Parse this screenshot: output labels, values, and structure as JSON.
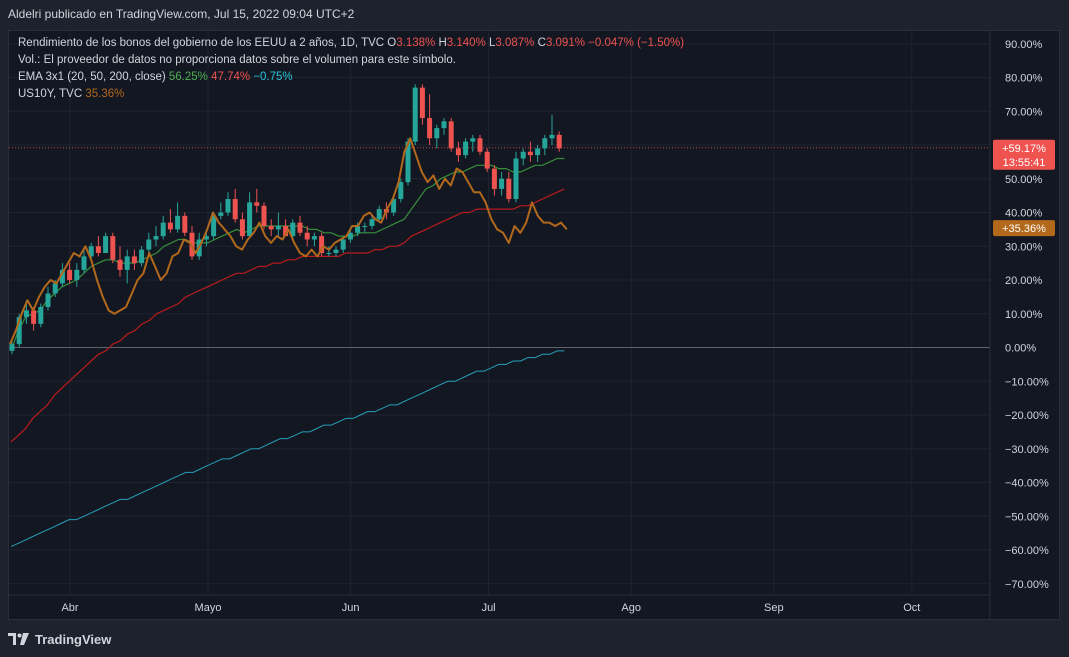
{
  "header": {
    "publisher": "Aldelri publicado en TradingView.com, Jul 15, 2022 09:04 UTC+2"
  },
  "legend": {
    "line1": {
      "symbol": "Rendimiento de los bonos del gobierno de los EEUU a 2 años, 1D, TVC",
      "o_label": "O",
      "o_value": "3.138%",
      "h_label": "H",
      "h_value": "3.140%",
      "l_label": "L",
      "l_value": "3.087%",
      "c_label": "C",
      "c_value": "3.091%",
      "change": "−0.047% (−1.50%)"
    },
    "line2": "Vol.: El proveedor de datos no proporciona datos sobre el volumen para este símbolo.",
    "line3": {
      "label": "EMA 3x1 (20, 50, 200, close)",
      "v1": "56.25%",
      "v2": "47.74%",
      "v3": "−0.75%"
    },
    "line4": {
      "label": "US10Y, TVC",
      "v1": "35.36%"
    }
  },
  "price_tags": {
    "main": {
      "value": "+59.17%",
      "countdown": "13:55:41"
    },
    "us10y": {
      "value": "+35.36%"
    }
  },
  "colors": {
    "up": "#26a69a",
    "down": "#ef5350",
    "ema20": "#388e3c",
    "ema50": "#b71c1c",
    "ema200": "#26a0b8",
    "us10y": "#b2691c",
    "background": "#131722",
    "grid": "#1f2330"
  },
  "chart_data": {
    "type": "line",
    "ylim": [
      -70,
      90
    ],
    "y_ticks": [
      90,
      80,
      70,
      60,
      50,
      40,
      30,
      20,
      10,
      0,
      -10,
      -20,
      -30,
      -40,
      -50,
      -60,
      -70
    ],
    "y_tick_labels": [
      "90.00%",
      "80.00%",
      "70.00%",
      "60.00%",
      "50.00%",
      "40.00%",
      "30.00%",
      "20.00%",
      "10.00%",
      "0.00%",
      "−10.00%",
      "−20.00%",
      "−30.00%",
      "−40.00%",
      "−50.00%",
      "−60.00%",
      "−70.00%"
    ],
    "x_tick_labels": [
      "Abr",
      "Mayo",
      "Jun",
      "Jul",
      "Ago",
      "Sep",
      "Oct"
    ],
    "x_tick_day": [
      23,
      53,
      84,
      114,
      145,
      176,
      206
    ],
    "x_start_day": 8.5,
    "x_px_per_day": 4.6,
    "current_value": 59.17,
    "candles": [
      [
        -1.0,
        2.0,
        -2.0,
        1.0
      ],
      [
        1.0,
        10.0,
        0.0,
        9.0
      ],
      [
        9.0,
        14.0,
        7.0,
        11.0
      ],
      [
        11.0,
        12.0,
        5.0,
        7.0
      ],
      [
        7.0,
        13.0,
        6.0,
        12.0
      ],
      [
        12.0,
        18.0,
        11.0,
        16.0
      ],
      [
        16.0,
        20.0,
        15.0,
        19.0
      ],
      [
        19.0,
        25.0,
        18.0,
        23.0
      ],
      [
        23.0,
        25.0,
        19.0,
        20.0
      ],
      [
        20.0,
        25.0,
        18.0,
        23.0
      ],
      [
        23.0,
        29.0,
        22.0,
        27.0
      ],
      [
        27.0,
        31.0,
        26.0,
        30.0
      ],
      [
        30.0,
        33.0,
        27.0,
        28.0
      ],
      [
        28.0,
        34.0,
        28.0,
        33.0
      ],
      [
        33.0,
        34.0,
        25.0,
        26.0
      ],
      [
        26.0,
        30.0,
        21.0,
        23.0
      ],
      [
        23.0,
        29.0,
        19.0,
        27.0
      ],
      [
        27.0,
        29.0,
        23.0,
        25.0
      ],
      [
        25.0,
        30.0,
        24.0,
        29.0
      ],
      [
        29.0,
        34.0,
        28.0,
        32.0
      ],
      [
        32.0,
        36.0,
        30.0,
        33.0
      ],
      [
        33.0,
        39.0,
        32.0,
        37.0
      ],
      [
        37.0,
        41.0,
        34.0,
        35.0
      ],
      [
        35.0,
        43.0,
        34.0,
        39.0
      ],
      [
        39.0,
        40.0,
        33.0,
        34.0
      ],
      [
        34.0,
        36.0,
        26.0,
        27.0
      ],
      [
        27.0,
        34.0,
        26.0,
        32.0
      ],
      [
        32.0,
        35.0,
        30.0,
        33.0
      ],
      [
        33.0,
        40.0,
        32.0,
        39.0
      ],
      [
        39.0,
        43.0,
        38.0,
        40.0
      ],
      [
        40.0,
        46.0,
        39.0,
        44.0
      ],
      [
        44.0,
        47.0,
        37.0,
        38.0
      ],
      [
        38.0,
        40.0,
        32.0,
        33.0
      ],
      [
        33.0,
        46.0,
        33.0,
        43.0
      ],
      [
        43.0,
        47.0,
        40.0,
        42.0
      ],
      [
        42.0,
        43.0,
        35.0,
        36.0
      ],
      [
        36.0,
        38.0,
        33.0,
        35.0
      ],
      [
        35.0,
        40.0,
        33.0,
        36.0
      ],
      [
        36.0,
        38.0,
        33.0,
        33.0
      ],
      [
        33.0,
        38.0,
        32.0,
        37.0
      ],
      [
        37.0,
        39.0,
        33.0,
        34.0
      ],
      [
        34.0,
        36.0,
        30.0,
        32.0
      ],
      [
        32.0,
        34.0,
        30.0,
        33.0
      ],
      [
        33.0,
        34.0,
        27.0,
        28.0
      ],
      [
        28.0,
        30.0,
        27.0,
        28.0
      ],
      [
        28.0,
        30.0,
        27.0,
        29.0
      ],
      [
        29.0,
        33.0,
        28.0,
        32.0
      ],
      [
        32.0,
        35.0,
        31.0,
        34.0
      ],
      [
        34.0,
        37.0,
        33.0,
        36.0
      ],
      [
        36.0,
        37.0,
        34.0,
        36.0
      ],
      [
        36.0,
        39.0,
        35.0,
        38.0
      ],
      [
        38.0,
        42.0,
        37.0,
        41.0
      ],
      [
        41.0,
        43.0,
        38.0,
        40.0
      ],
      [
        40.0,
        45.0,
        39.0,
        44.0
      ],
      [
        44.0,
        50.0,
        43.0,
        49.0
      ],
      [
        49.0,
        62.0,
        48.0,
        61.0
      ],
      [
        61.0,
        78.0,
        60.0,
        77.0
      ],
      [
        77.0,
        78.0,
        66.0,
        68.0
      ],
      [
        68.0,
        75.0,
        60.0,
        62.0
      ],
      [
        62.0,
        66.0,
        59.0,
        65.0
      ],
      [
        65.0,
        68.0,
        63.0,
        67.0
      ],
      [
        67.0,
        68.0,
        58.0,
        59.0
      ],
      [
        59.0,
        61.0,
        55.0,
        57.0
      ],
      [
        57.0,
        62.0,
        56.0,
        61.0
      ],
      [
        61.0,
        63.0,
        58.0,
        62.0
      ],
      [
        62.0,
        63.0,
        57.0,
        58.0
      ],
      [
        58.0,
        59.0,
        52.0,
        53.0
      ],
      [
        53.0,
        54.0,
        45.0,
        47.0
      ],
      [
        47.0,
        52.0,
        45.0,
        50.0
      ],
      [
        50.0,
        52.0,
        43.0,
        44.0
      ],
      [
        44.0,
        58.0,
        43.0,
        56.0
      ],
      [
        56.0,
        59.0,
        54.0,
        58.0
      ],
      [
        58.0,
        61.0,
        55.0,
        57.0
      ],
      [
        57.0,
        60.0,
        55.0,
        59.0
      ],
      [
        59.0,
        63.0,
        57.0,
        62.0
      ],
      [
        62.0,
        69.0,
        60.0,
        63.0
      ],
      [
        63.0,
        64.0,
        58.0,
        59.0
      ]
    ],
    "series": [
      {
        "values": [
          -1.0,
          5.0,
          9.0,
          10.0,
          11.0,
          14.0,
          16.0,
          18.0,
          19.0,
          20.0,
          22.0,
          24.0,
          25.0,
          26.0,
          26.0,
          25.0,
          25.0,
          25.0,
          26.0,
          27.0,
          28.0,
          30.0,
          31.0,
          32.0,
          32.0,
          31.0,
          31.0,
          31.0,
          32.0,
          33.0,
          34.0,
          35.0,
          34.0,
          35.0,
          36.0,
          36.0,
          36.0,
          36.0,
          36.0,
          36.0,
          36.0,
          35.0,
          35.0,
          34.0,
          34.0,
          33.0,
          33.0,
          33.0,
          34.0,
          34.0,
          34.0,
          35.0,
          36.0,
          37.0,
          38.0,
          41.0,
          44.0,
          47.0,
          48.0,
          50.0,
          51.0,
          52.0,
          52.0,
          53.0,
          54.0,
          54.0,
          54.0,
          53.0,
          53.0,
          52.0,
          52.0,
          53.0,
          54.0,
          54.0,
          55.0,
          56.0,
          56.0
        ]
      },
      {
        "values": [
          -28.0,
          -26.0,
          -24.0,
          -21.0,
          -19.0,
          -17.0,
          -14.0,
          -12.0,
          -10.0,
          -8.0,
          -6.0,
          -4.0,
          -2.0,
          -1.0,
          1.0,
          2.0,
          4.0,
          5.0,
          7.0,
          8.0,
          10.0,
          11.0,
          12.0,
          13.0,
          15.0,
          16.0,
          17.0,
          18.0,
          19.0,
          20.0,
          21.0,
          22.0,
          22.0,
          23.0,
          24.0,
          24.0,
          25.0,
          25.0,
          26.0,
          26.0,
          27.0,
          27.0,
          27.0,
          27.0,
          27.0,
          27.0,
          28.0,
          28.0,
          28.0,
          28.0,
          29.0,
          29.0,
          30.0,
          30.0,
          31.0,
          33.0,
          34.0,
          35.0,
          36.0,
          37.0,
          38.0,
          39.0,
          40.0,
          40.0,
          41.0,
          41.0,
          41.0,
          41.0,
          41.0,
          41.0,
          42.0,
          42.0,
          43.0,
          44.0,
          45.0,
          46.0,
          47.0
        ]
      },
      {
        "values": [
          -59.0,
          -58.0,
          -57.0,
          -56.0,
          -55.0,
          -54.0,
          -53.0,
          -52.0,
          -51.0,
          -51.0,
          -50.0,
          -49.0,
          -48.0,
          -47.0,
          -46.0,
          -45.0,
          -45.0,
          -44.0,
          -43.0,
          -42.0,
          -41.0,
          -40.0,
          -39.0,
          -38.0,
          -37.0,
          -37.0,
          -36.0,
          -35.0,
          -34.0,
          -33.0,
          -33.0,
          -32.0,
          -31.0,
          -30.0,
          -30.0,
          -29.0,
          -28.0,
          -27.0,
          -27.0,
          -26.0,
          -25.0,
          -25.0,
          -24.0,
          -23.0,
          -23.0,
          -22.0,
          -21.0,
          -21.0,
          -20.0,
          -19.0,
          -19.0,
          -18.0,
          -17.0,
          -17.0,
          -16.0,
          -15.0,
          -14.0,
          -13.0,
          -12.0,
          -11.0,
          -10.0,
          -10.0,
          -9.0,
          -8.0,
          -7.0,
          -7.0,
          -6.0,
          -5.0,
          -5.0,
          -4.0,
          -4.0,
          -3.0,
          -3.0,
          -2.0,
          -2.0,
          -1.0,
          -1.0
        ]
      },
      {
        "name": "US10Y, TVC",
        "values": [
          1.0,
          5.0,
          10.0,
          14.0,
          11.0,
          15.0,
          18.0,
          20.0,
          19.0,
          22.0,
          25.0,
          28.0,
          27.0,
          30.0,
          26.0,
          20.0,
          15.0,
          11.0,
          10.0,
          11.0,
          12.0,
          16.0,
          20.0,
          22.0,
          28.0,
          24.0,
          20.0,
          22.0,
          27.0,
          28.0,
          32.0,
          31.0,
          28.0,
          31.0,
          35.0,
          40.0,
          37.0,
          35.0,
          33.0,
          30.0,
          29.0,
          32.0,
          34.0,
          37.0,
          33.0,
          31.0,
          33.0,
          32.0,
          35.0,
          31.0,
          28.0,
          27.0,
          29.0,
          27.0,
          30.0,
          29.0,
          31.0,
          32.0,
          33.0,
          36.0,
          36.0,
          39.0,
          40.0,
          38.0,
          37.0,
          41.0,
          44.0,
          49.0,
          58.0,
          62.0,
          57.0,
          52.0,
          49.0,
          51.0,
          47.0,
          50.0,
          48.0,
          53.0,
          52.0,
          49.0,
          46.0,
          46.0,
          43.0,
          38.0,
          35.0,
          34.0,
          31.0,
          36.0,
          34.0,
          37.0,
          43.0,
          39.0,
          37.0,
          37.0,
          36.0,
          37.0,
          35.0
        ]
      }
    ]
  }
}
